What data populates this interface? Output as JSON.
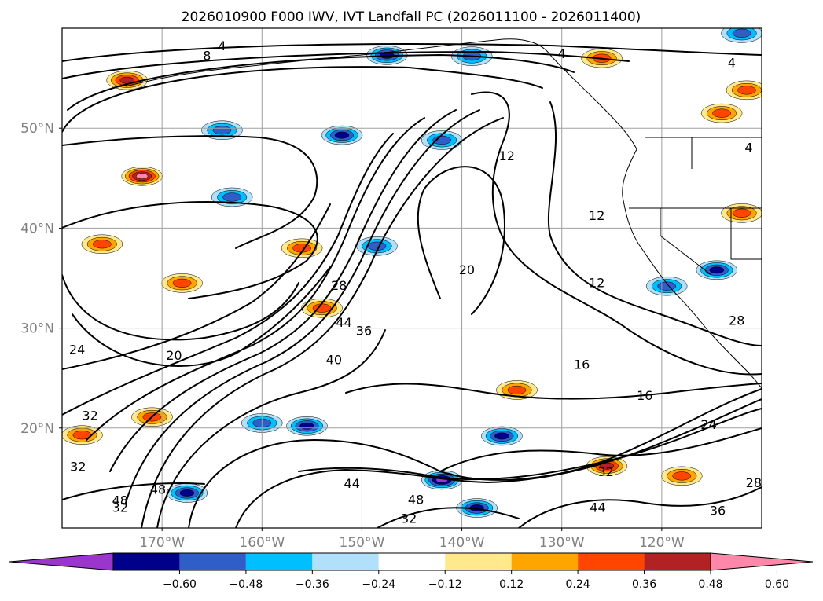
{
  "chart_data": {
    "type": "heatmap",
    "title": "2026010900 F000 IWV, IVT Landfall PC (2026011100 - 2026011400)",
    "x_ticks": [
      "170°W",
      "160°W",
      "150°W",
      "140°W",
      "130°W",
      "120°W"
    ],
    "x_tick_values": [
      -170,
      -160,
      -150,
      -140,
      -130,
      -120
    ],
    "y_ticks": [
      "50°N",
      "40°N",
      "30°N",
      "20°N"
    ],
    "y_tick_values": [
      50,
      40,
      30,
      20
    ],
    "xlim": [
      -180,
      -110
    ],
    "ylim": [
      10,
      60
    ],
    "grid": true,
    "colorbar": {
      "orientation": "horizontal",
      "extend": "both",
      "tick_labels": [
        "−0.60",
        "−0.48",
        "−0.36",
        "−0.24",
        "−0.12",
        "0.12",
        "0.24",
        "0.36",
        "0.48",
        "0.60"
      ],
      "levels": [
        -0.6,
        -0.48,
        -0.36,
        -0.24,
        -0.12,
        0.12,
        0.24,
        0.36,
        0.48,
        0.6
      ],
      "colors": [
        "#9a36cc",
        "#00008b",
        "#2f5ec9",
        "#00bfff",
        "#b0e0fa",
        "#ffffff",
        "#ffe98c",
        "#ffa500",
        "#ff4500",
        "#b22222",
        "#ff88aa"
      ]
    },
    "contour_labels": [
      {
        "text": "4",
        "lon": -164,
        "lat": 58.2
      },
      {
        "text": "8",
        "lon": -165.5,
        "lat": 57.2
      },
      {
        "text": "4",
        "lon": -130,
        "lat": 57.4
      },
      {
        "text": "4",
        "lon": -113,
        "lat": 56.5
      },
      {
        "text": "4",
        "lon": -111.3,
        "lat": 48
      },
      {
        "text": "12",
        "lon": -135.5,
        "lat": 47.2
      },
      {
        "text": "12",
        "lon": -126.5,
        "lat": 41.2
      },
      {
        "text": "20",
        "lon": -139.5,
        "lat": 35.8
      },
      {
        "text": "12",
        "lon": -126.5,
        "lat": 34.5
      },
      {
        "text": "28",
        "lon": -152.3,
        "lat": 34.2
      },
      {
        "text": "44",
        "lon": -151.8,
        "lat": 30.5
      },
      {
        "text": "36",
        "lon": -149.8,
        "lat": 29.7
      },
      {
        "text": "40",
        "lon": -152.8,
        "lat": 26.8
      },
      {
        "text": "20",
        "lon": -168.8,
        "lat": 27.2
      },
      {
        "text": "24",
        "lon": -178.5,
        "lat": 27.8
      },
      {
        "text": "16",
        "lon": -128,
        "lat": 26.3
      },
      {
        "text": "16",
        "lon": -121.7,
        "lat": 23.2
      },
      {
        "text": "32",
        "lon": -177.2,
        "lat": 21.2
      },
      {
        "text": "24",
        "lon": -115.3,
        "lat": 20.3
      },
      {
        "text": "32",
        "lon": -178.4,
        "lat": 16.1
      },
      {
        "text": "32",
        "lon": -125.6,
        "lat": 15.6
      },
      {
        "text": "44",
        "lon": -151,
        "lat": 14.4
      },
      {
        "text": "48",
        "lon": -144.6,
        "lat": 12.8
      },
      {
        "text": "32",
        "lon": -145.3,
        "lat": 10.9
      },
      {
        "text": "44",
        "lon": -126.4,
        "lat": 12
      },
      {
        "text": "48",
        "lon": -174.2,
        "lat": 12.7
      },
      {
        "text": "32",
        "lon": -174.2,
        "lat": 12
      },
      {
        "text": "48",
        "lon": -170.4,
        "lat": 13.8
      },
      {
        "text": "28",
        "lon": -110.8,
        "lat": 14.5
      },
      {
        "text": "28",
        "lon": -112.5,
        "lat": 30.7
      },
      {
        "text": "36",
        "lon": -114.4,
        "lat": 11.7
      }
    ],
    "anomaly_patches": [
      {
        "lon": -173.5,
        "lat": 54.8,
        "value": 0.48
      },
      {
        "lon": -172,
        "lat": 45.2,
        "value": 0.6
      },
      {
        "lon": -176,
        "lat": 38.4,
        "value": 0.36
      },
      {
        "lon": -168,
        "lat": 34.5,
        "value": 0.36
      },
      {
        "lon": -156,
        "lat": 38,
        "value": 0.36
      },
      {
        "lon": -154,
        "lat": 32,
        "value": 0.36
      },
      {
        "lon": -126,
        "lat": 57,
        "value": 0.36
      },
      {
        "lon": -114,
        "lat": 51.5,
        "value": 0.36
      },
      {
        "lon": -111.5,
        "lat": 53.8,
        "value": 0.36
      },
      {
        "lon": -112,
        "lat": 41.5,
        "value": 0.36
      },
      {
        "lon": -125.5,
        "lat": 16.2,
        "value": 0.48
      },
      {
        "lon": -118,
        "lat": 15.2,
        "value": 0.36
      },
      {
        "lon": -134.5,
        "lat": 23.8,
        "value": 0.36
      },
      {
        "lon": -171,
        "lat": 21.1,
        "value": 0.36
      },
      {
        "lon": -178,
        "lat": 19.3,
        "value": 0.36
      },
      {
        "lon": -147.5,
        "lat": 57.3,
        "value": -0.48
      },
      {
        "lon": -139,
        "lat": 57.2,
        "value": -0.36
      },
      {
        "lon": -164,
        "lat": 49.8,
        "value": -0.36
      },
      {
        "lon": -152,
        "lat": 49.3,
        "value": -0.48
      },
      {
        "lon": -142,
        "lat": 48.8,
        "value": -0.36
      },
      {
        "lon": -163,
        "lat": 43.1,
        "value": -0.36
      },
      {
        "lon": -148.5,
        "lat": 38.2,
        "value": -0.36
      },
      {
        "lon": -119.5,
        "lat": 34.2,
        "value": -0.36
      },
      {
        "lon": -114.5,
        "lat": 35.8,
        "value": -0.48
      },
      {
        "lon": -160,
        "lat": 20.5,
        "value": -0.36
      },
      {
        "lon": -155.5,
        "lat": 20.2,
        "value": -0.48
      },
      {
        "lon": -136,
        "lat": 19.2,
        "value": -0.48
      },
      {
        "lon": -142,
        "lat": 14.8,
        "value": -0.6
      },
      {
        "lon": -138.5,
        "lat": 12,
        "value": -0.48
      },
      {
        "lon": -167.5,
        "lat": 13.5,
        "value": -0.48
      },
      {
        "lon": -112,
        "lat": 59.5,
        "value": -0.36
      }
    ]
  }
}
